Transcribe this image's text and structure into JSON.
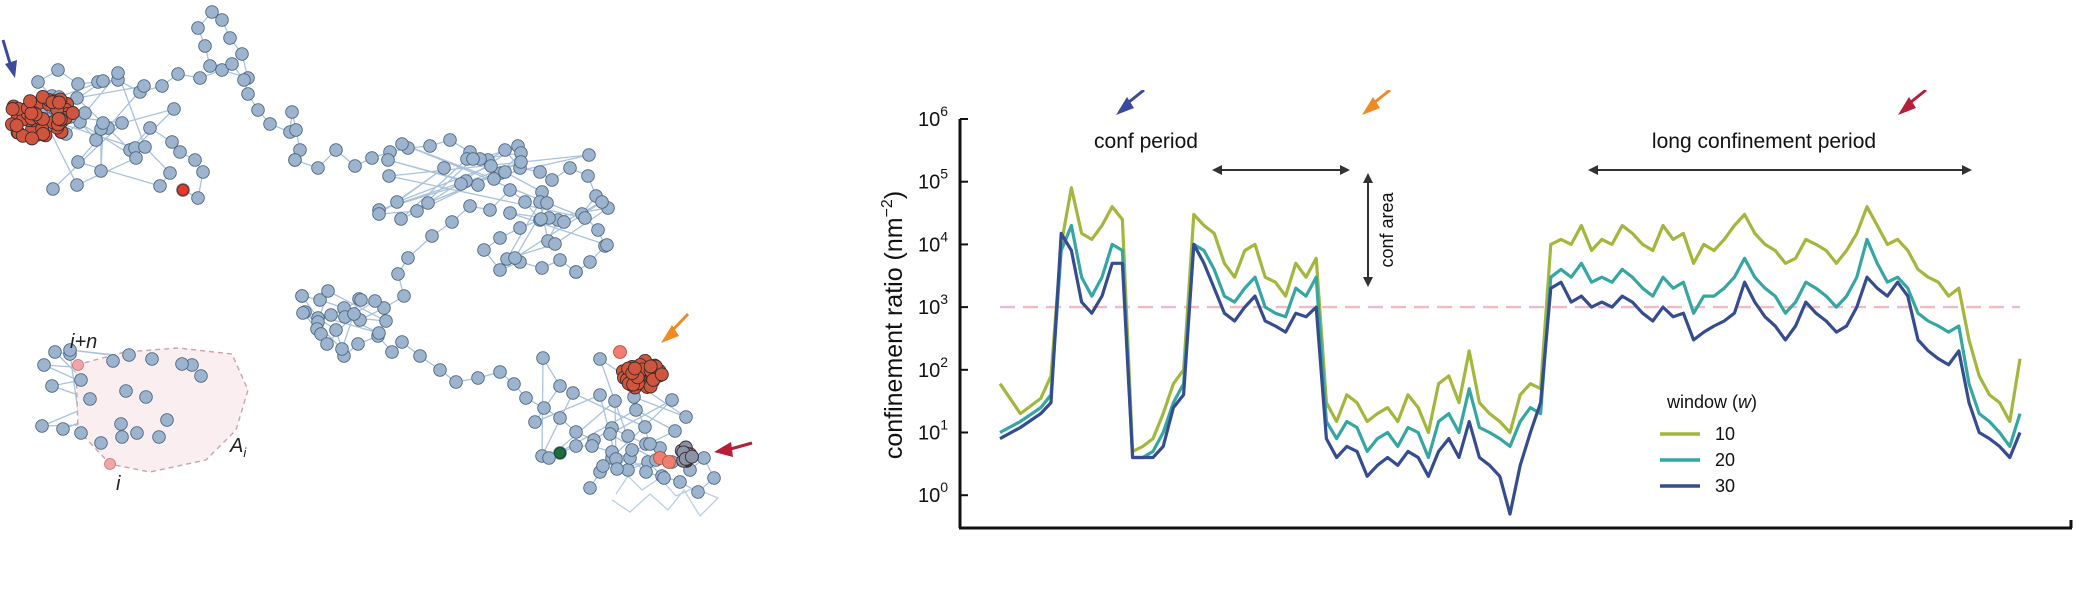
{
  "trajectory_panel": {
    "hull_labels": {
      "start": "i",
      "end": "i+n",
      "area": "A",
      "area_sub": "i"
    }
  },
  "chart_data": {
    "type": "line",
    "xlabel": "",
    "ylabel": "confinement ratio (nm−2)",
    "ylabel_parts": {
      "text": "confinement ratio (nm",
      "sup": "−2",
      "close": ")"
    },
    "yscale": "log",
    "ylim": [
      0.3,
      1000000
    ],
    "yticks": [
      1,
      10,
      100,
      1000,
      10000,
      100000,
      1000000
    ],
    "ytick_labels": [
      {
        "base": "10",
        "exp": "0"
      },
      {
        "base": "10",
        "exp": "1"
      },
      {
        "base": "10",
        "exp": "2"
      },
      {
        "base": "10",
        "exp": "3"
      },
      {
        "base": "10",
        "exp": "4"
      },
      {
        "base": "10",
        "exp": "5"
      },
      {
        "base": "10",
        "exp": "6"
      }
    ],
    "xlim": [
      0,
      100
    ],
    "threshold": 1000,
    "threshold_color": "#f4b9c2",
    "legend": {
      "title": "window (",
      "title_italic": "w",
      "title_close": ")",
      "position": "center-right"
    },
    "annotations": {
      "conf_period": "conf period",
      "conf_area": "conf area",
      "long_period": "long confinement period"
    },
    "series": [
      {
        "name": "10",
        "color": "#a2b83c",
        "x": [
          0,
          2,
          4,
          5,
          6,
          7,
          8,
          9,
          10,
          11,
          12,
          13,
          14,
          15,
          16,
          17,
          18,
          19,
          20,
          21,
          22,
          23,
          24,
          25,
          26,
          27,
          28,
          29,
          30,
          31,
          32,
          33,
          34,
          35,
          36,
          37,
          38,
          39,
          40,
          41,
          42,
          43,
          44,
          45,
          46,
          47,
          48,
          49,
          50,
          51,
          52,
          53,
          54,
          55,
          56,
          57,
          58,
          59,
          60,
          61,
          62,
          63,
          64,
          65,
          66,
          67,
          68,
          69,
          70,
          71,
          72,
          73,
          74,
          75,
          76,
          77,
          78,
          79,
          80,
          81,
          82,
          83,
          84,
          85,
          86,
          87,
          88,
          89,
          90,
          91,
          92,
          93,
          94,
          95,
          96,
          97,
          98,
          99,
          100
        ],
        "y": [
          60,
          20,
          35,
          80,
          10000,
          80000,
          15000,
          12000,
          20000,
          40000,
          25000,
          5,
          6,
          8,
          20,
          60,
          100,
          30000,
          20000,
          15000,
          5000,
          3000,
          8000,
          10000,
          3000,
          2500,
          1500,
          5000,
          3000,
          6000,
          30,
          15,
          40,
          30,
          15,
          20,
          25,
          15,
          40,
          25,
          10,
          60,
          80,
          30,
          200,
          30,
          20,
          15,
          10,
          40,
          60,
          50,
          10000,
          12000,
          10000,
          20000,
          8000,
          12000,
          10000,
          20000,
          15000,
          10000,
          8000,
          20000,
          12000,
          15000,
          5000,
          10000,
          8000,
          12000,
          20000,
          30000,
          15000,
          10000,
          8000,
          5000,
          6000,
          12000,
          10000,
          8000,
          5000,
          8000,
          15000,
          40000,
          20000,
          10000,
          12000,
          8000,
          4000,
          3000,
          2500,
          1500,
          2000,
          300,
          80,
          40,
          30,
          15,
          150
        ]
      },
      {
        "name": "20",
        "color": "#35a6a2",
        "x": [
          0,
          2,
          4,
          5,
          6,
          7,
          8,
          9,
          10,
          11,
          12,
          13,
          14,
          15,
          16,
          17,
          18,
          19,
          20,
          21,
          22,
          23,
          24,
          25,
          26,
          27,
          28,
          29,
          30,
          31,
          32,
          33,
          34,
          35,
          36,
          37,
          38,
          39,
          40,
          41,
          42,
          43,
          44,
          45,
          46,
          47,
          48,
          49,
          50,
          51,
          52,
          53,
          54,
          55,
          56,
          57,
          58,
          59,
          60,
          61,
          62,
          63,
          64,
          65,
          66,
          67,
          68,
          69,
          70,
          71,
          72,
          73,
          74,
          75,
          76,
          77,
          78,
          79,
          80,
          81,
          82,
          83,
          84,
          85,
          86,
          87,
          88,
          89,
          90,
          91,
          92,
          93,
          94,
          95,
          96,
          97,
          98,
          99,
          100
        ],
        "y": [
          10,
          15,
          25,
          40,
          8000,
          20000,
          3000,
          1500,
          3000,
          10000,
          8000,
          4,
          4,
          5,
          10,
          30,
          60,
          10000,
          8000,
          4000,
          1500,
          1200,
          2000,
          3000,
          1000,
          800,
          700,
          2000,
          1500,
          3000,
          15,
          8,
          15,
          12,
          5,
          8,
          10,
          6,
          12,
          10,
          4,
          15,
          20,
          10,
          50,
          12,
          10,
          8,
          6,
          15,
          25,
          20,
          3000,
          4000,
          3000,
          5000,
          2500,
          3000,
          2500,
          4000,
          3000,
          2000,
          1500,
          3000,
          2000,
          2500,
          800,
          1500,
          1500,
          2000,
          3000,
          6000,
          3000,
          2000,
          1500,
          800,
          1200,
          2500,
          2000,
          1500,
          1000,
          1500,
          3000,
          12000,
          5000,
          2500,
          3000,
          2000,
          800,
          600,
          500,
          400,
          500,
          60,
          20,
          15,
          10,
          6,
          20
        ]
      },
      {
        "name": "30",
        "color": "#354c8e",
        "x": [
          0,
          2,
          4,
          5,
          6,
          7,
          8,
          9,
          10,
          11,
          12,
          13,
          14,
          15,
          16,
          17,
          18,
          19,
          20,
          21,
          22,
          23,
          24,
          25,
          26,
          27,
          28,
          29,
          30,
          31,
          32,
          33,
          34,
          35,
          36,
          37,
          38,
          39,
          40,
          41,
          42,
          43,
          44,
          45,
          46,
          47,
          48,
          49,
          50,
          51,
          52,
          53,
          54,
          55,
          56,
          57,
          58,
          59,
          60,
          61,
          62,
          63,
          64,
          65,
          66,
          67,
          68,
          69,
          70,
          71,
          72,
          73,
          74,
          75,
          76,
          77,
          78,
          79,
          80,
          81,
          82,
          83,
          84,
          85,
          86,
          87,
          88,
          89,
          90,
          91,
          92,
          93,
          94,
          95,
          96,
          97,
          98,
          99,
          100
        ],
        "y": [
          8,
          12,
          20,
          30,
          15000,
          8000,
          1200,
          800,
          1500,
          5000,
          5000,
          4,
          4,
          4,
          6,
          25,
          40,
          10000,
          5000,
          2000,
          800,
          600,
          1000,
          1500,
          600,
          500,
          400,
          800,
          700,
          1000,
          8,
          4,
          6,
          5,
          2,
          3,
          4,
          3,
          5,
          4,
          2,
          5,
          8,
          4,
          15,
          4,
          3,
          2,
          0.5,
          3,
          10,
          30,
          2000,
          2500,
          1200,
          1500,
          1000,
          1200,
          1000,
          1500,
          1200,
          800,
          600,
          1000,
          700,
          800,
          300,
          400,
          500,
          600,
          800,
          2500,
          1200,
          700,
          500,
          300,
          500,
          1200,
          800,
          600,
          400,
          500,
          1000,
          3000,
          2000,
          1500,
          2500,
          1500,
          300,
          200,
          150,
          120,
          200,
          30,
          10,
          8,
          6,
          4,
          10
        ]
      }
    ]
  }
}
